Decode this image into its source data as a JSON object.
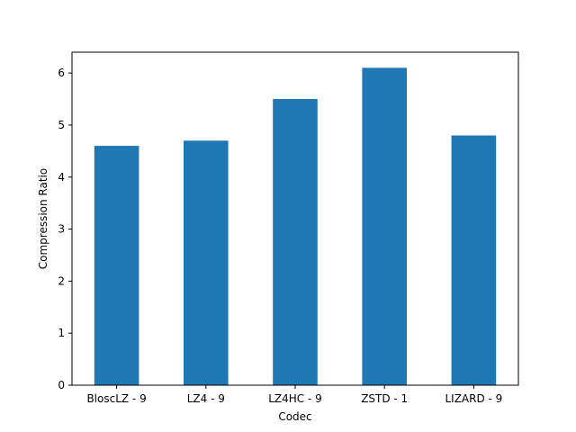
{
  "chart_data": {
    "type": "bar",
    "categories": [
      "BloscLZ - 9",
      "LZ4 - 9",
      "LZ4HC - 9",
      "ZSTD - 1",
      "LIZARD - 9"
    ],
    "values": [
      4.6,
      4.7,
      5.5,
      6.1,
      4.8
    ],
    "title": "",
    "xlabel": "Codec",
    "ylabel": "Compression Ratio",
    "ylim": [
      0,
      6.4
    ],
    "yticks": [
      0,
      1,
      2,
      3,
      4,
      5,
      6
    ],
    "bar_color": "#1f77b4",
    "grid": false,
    "legend": "none"
  }
}
